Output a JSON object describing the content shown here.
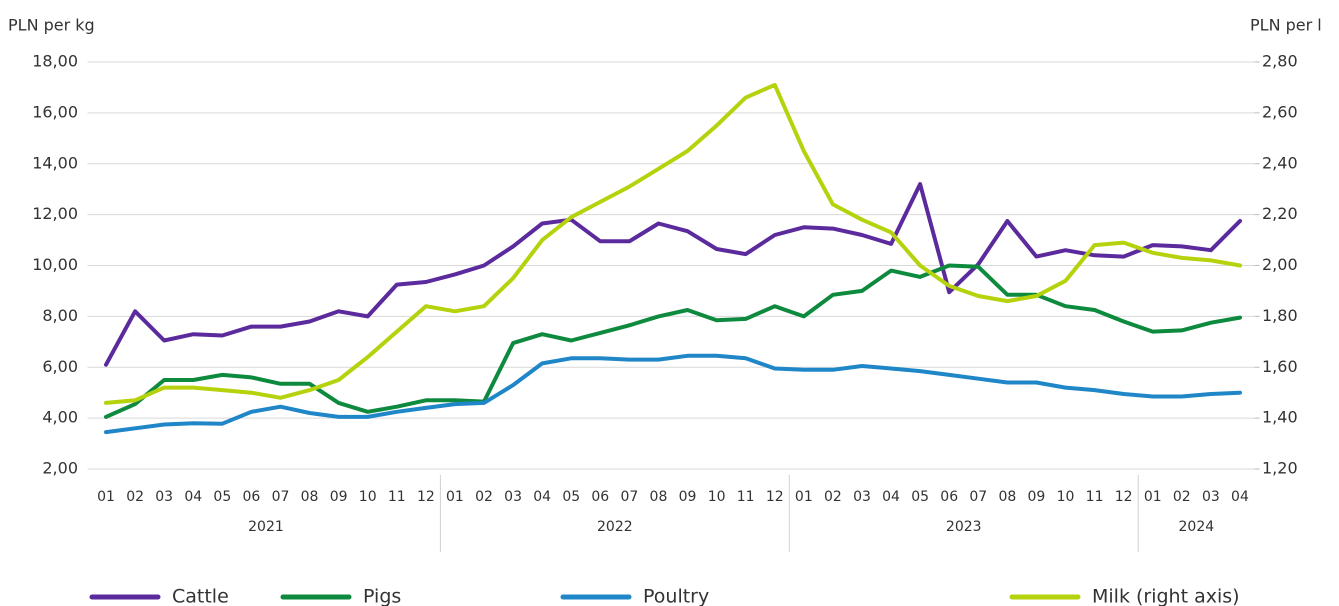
{
  "chart_data": {
    "type": "line",
    "ylabel": "PLN per kg",
    "y2label": "PLN per l",
    "category_groups": [
      {
        "name": "2021",
        "categories": [
          "01",
          "02",
          "03",
          "04",
          "05",
          "06",
          "07",
          "08",
          "09",
          "10",
          "11",
          "12"
        ]
      },
      {
        "name": "2022",
        "categories": [
          "01",
          "02",
          "03",
          "04",
          "05",
          "06",
          "07",
          "08",
          "09",
          "10",
          "11",
          "12"
        ]
      },
      {
        "name": "2023",
        "categories": [
          "01",
          "02",
          "03",
          "04",
          "05",
          "06",
          "07",
          "08",
          "09",
          "10",
          "11",
          "12"
        ]
      },
      {
        "name": "2024",
        "categories": [
          "01",
          "02",
          "03",
          "04"
        ]
      }
    ],
    "series": [
      {
        "name": "Cattle",
        "color": "#5b2a9c",
        "values": [
          6.1,
          8.2,
          7.05,
          7.3,
          7.25,
          7.6,
          7.6,
          7.8,
          8.2,
          8.0,
          9.25,
          9.35,
          9.65,
          10.0,
          10.75,
          11.65,
          11.8,
          10.95,
          10.95,
          11.65,
          11.35,
          10.65,
          10.45,
          11.2,
          11.5,
          11.45,
          11.2,
          10.85,
          13.2,
          8.95,
          10.05,
          11.75,
          10.35,
          10.6,
          10.4,
          10.35,
          10.8,
          10.75,
          10.6,
          11.75
        ]
      },
      {
        "name": "Pigs",
        "color": "#0e8a3e",
        "values": [
          4.05,
          4.55,
          5.5,
          5.5,
          5.7,
          5.6,
          5.35,
          5.35,
          4.6,
          4.25,
          4.45,
          4.7,
          4.7,
          4.65,
          6.95,
          7.3,
          7.05,
          7.35,
          7.65,
          8.0,
          8.25,
          7.85,
          7.9,
          8.4,
          8.0,
          8.85,
          9.0,
          9.8,
          9.55,
          10.0,
          9.95,
          8.85,
          8.85,
          8.4,
          8.25,
          7.8,
          7.4,
          7.45,
          7.75,
          7.95
        ]
      },
      {
        "name": "Poultry",
        "color": "#1f86c8",
        "values": [
          3.45,
          3.6,
          3.75,
          3.8,
          3.78,
          4.25,
          4.45,
          4.2,
          4.05,
          4.05,
          4.25,
          4.4,
          4.55,
          4.6,
          5.3,
          6.15,
          6.35,
          6.35,
          6.3,
          6.3,
          6.45,
          6.45,
          6.35,
          5.95,
          5.9,
          5.9,
          6.05,
          5.95,
          5.85,
          5.7,
          5.55,
          5.4,
          5.4,
          5.2,
          5.1,
          4.95,
          4.85,
          4.85,
          4.95,
          5.0
        ]
      },
      {
        "name": "Milk (right axis)",
        "color": "#b5d20c",
        "axis": "y2",
        "values": [
          1.46,
          1.47,
          1.52,
          1.52,
          1.51,
          1.5,
          1.48,
          1.51,
          1.55,
          1.64,
          1.74,
          1.84,
          1.82,
          1.84,
          1.95,
          2.1,
          2.19,
          2.25,
          2.31,
          2.38,
          2.45,
          2.55,
          2.66,
          2.71,
          2.45,
          2.24,
          2.18,
          2.13,
          2.0,
          1.92,
          1.88,
          1.86,
          1.88,
          1.94,
          2.08,
          2.09,
          2.05,
          2.03,
          2.02,
          2.0
        ]
      }
    ],
    "ylim": [
      2,
      18
    ],
    "yticks": [
      {
        "value": 2,
        "label": "2,00"
      },
      {
        "value": 4,
        "label": "4,00"
      },
      {
        "value": 6,
        "label": "6,00"
      },
      {
        "value": 8,
        "label": "8,00"
      },
      {
        "value": 10,
        "label": "10,00"
      },
      {
        "value": 12,
        "label": "12,00"
      },
      {
        "value": 14,
        "label": "14,00"
      },
      {
        "value": 16,
        "label": "16,00"
      },
      {
        "value": 18,
        "label": "18,00"
      }
    ],
    "y2lim": [
      1.2,
      2.8
    ],
    "y2ticks": [
      {
        "value": 1.2,
        "label": "1,20"
      },
      {
        "value": 1.4,
        "label": "1,40"
      },
      {
        "value": 1.6,
        "label": "1,60"
      },
      {
        "value": 1.8,
        "label": "1,80"
      },
      {
        "value": 2.0,
        "label": "2,00"
      },
      {
        "value": 2.2,
        "label": "2,20"
      },
      {
        "value": 2.4,
        "label": "2,40"
      },
      {
        "value": 2.6,
        "label": "2,60"
      },
      {
        "value": 2.8,
        "label": "2,80"
      }
    ],
    "grid": true,
    "legend": "bottom"
  }
}
